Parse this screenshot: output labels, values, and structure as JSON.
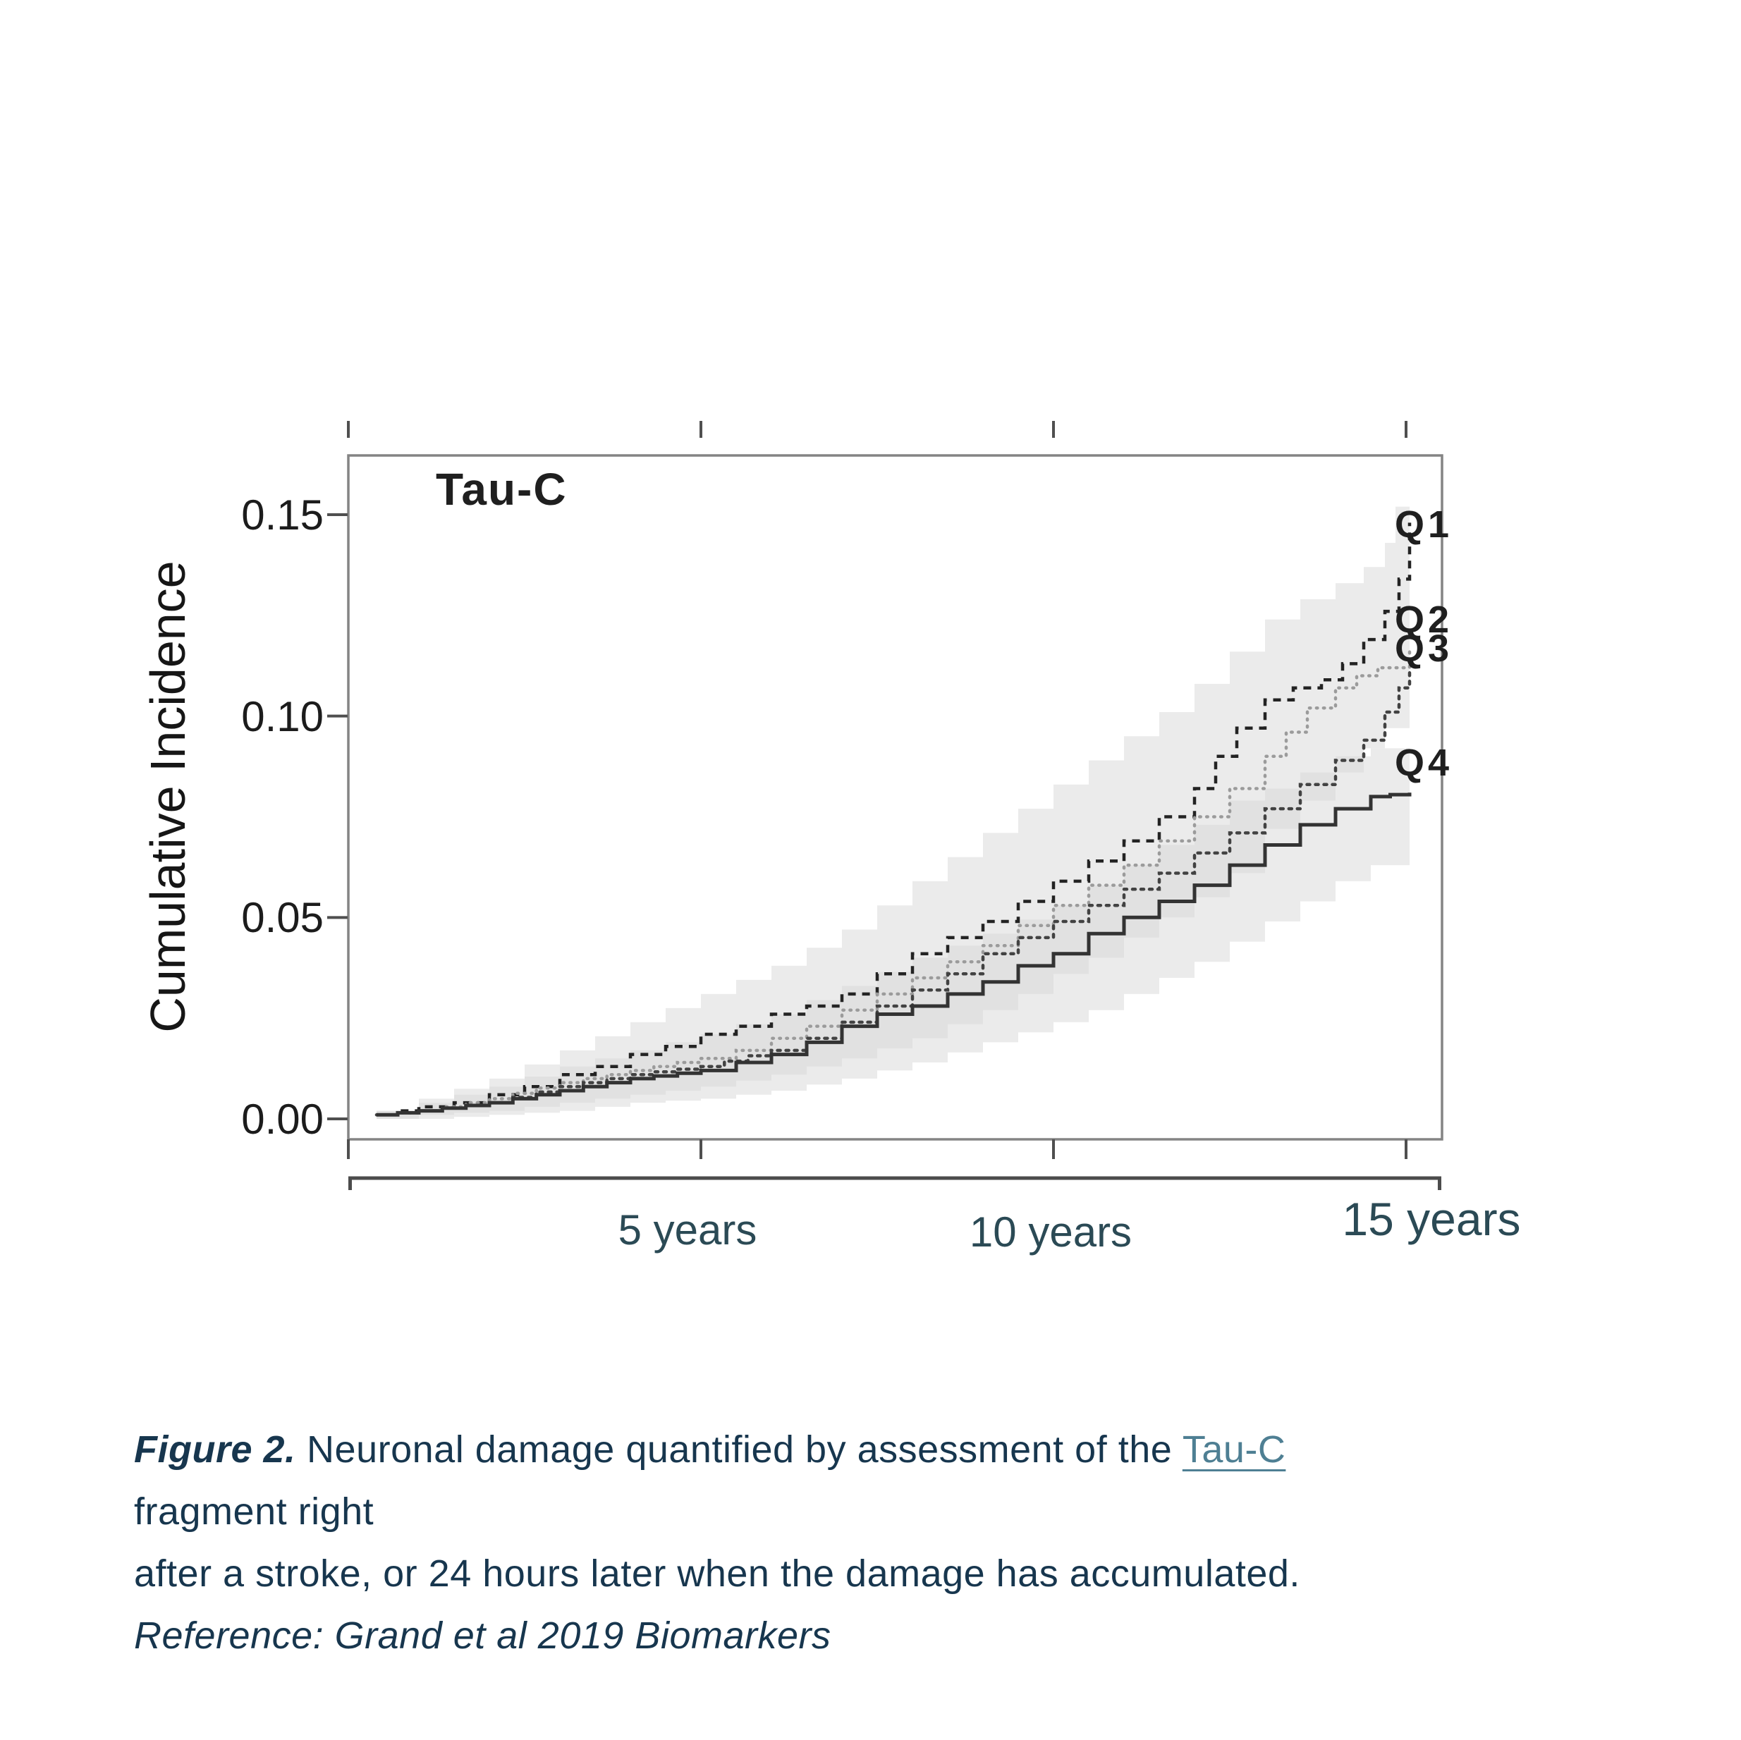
{
  "figure": {
    "plot": {
      "title": "Tau-C",
      "y_axis": {
        "label": "Cumulative Incidence",
        "ticks": [
          "0.15",
          "0.10",
          "0.05",
          "0.00"
        ]
      },
      "x_axis": {
        "tick_labels": [
          "5 years",
          "10 years",
          "15 years"
        ]
      }
    }
  },
  "caption": {
    "figure_label": "Figure 2.",
    "body_1": " Neuronal damage quantified by assessment of the ",
    "link_text": "Tau-C",
    "body_1_end": " fragment right",
    "line2": "after a stroke, or 24 hours later when the damage has accumulated.",
    "reference": "Reference: Grand et al 2019 Biomarkers"
  },
  "colors": {
    "caption_text": "#17364e",
    "x_label_teal": "#2b4a55",
    "link_teal": "#4e7f93",
    "plot_text": "#1f1f1f",
    "frame_gray": "#848484",
    "tick_gray": "#4f4f4f",
    "band_gray": "#d8d8d8"
  },
  "chart_data": {
    "type": "line",
    "style": "kaplan-meier step curves with shaded confidence bands",
    "title": "Tau-C",
    "xlabel": "years",
    "ylabel": "Cumulative Incidence",
    "xlim": [
      0,
      15.7
    ],
    "ylim": [
      -0.005,
      0.165
    ],
    "x_ticks": [
      0,
      5,
      10,
      15
    ],
    "y_ticks": [
      0.15,
      0.1,
      0.05,
      0.0
    ],
    "grid": false,
    "legend_position": "right-edge-labels",
    "series": [
      {
        "name": "Q1",
        "line_style": "dashed",
        "color": "#232323",
        "width": 4.5,
        "dash": "11 9",
        "points": [
          [
            0.4,
            0.001
          ],
          [
            1,
            0.003
          ],
          [
            1.5,
            0.004
          ],
          [
            2,
            0.006
          ],
          [
            2.5,
            0.008
          ],
          [
            3,
            0.011
          ],
          [
            3.5,
            0.013
          ],
          [
            4,
            0.016
          ],
          [
            4.5,
            0.018
          ],
          [
            5,
            0.021
          ],
          [
            5.5,
            0.023
          ],
          [
            6,
            0.026
          ],
          [
            6.5,
            0.028
          ],
          [
            7,
            0.031
          ],
          [
            7.5,
            0.036
          ],
          [
            8,
            0.041
          ],
          [
            8.5,
            0.045
          ],
          [
            9,
            0.049
          ],
          [
            9.5,
            0.054
          ],
          [
            10,
            0.059
          ],
          [
            10.5,
            0.064
          ],
          [
            11,
            0.069
          ],
          [
            11.5,
            0.075
          ],
          [
            12,
            0.082
          ],
          [
            12.3,
            0.09
          ],
          [
            12.6,
            0.097
          ],
          [
            13,
            0.104
          ],
          [
            13.4,
            0.107
          ],
          [
            13.8,
            0.109
          ],
          [
            14.1,
            0.113
          ],
          [
            14.4,
            0.119
          ],
          [
            14.7,
            0.126
          ],
          [
            14.9,
            0.134
          ],
          [
            15.05,
            0.148
          ]
        ]
      },
      {
        "name": "Q2",
        "line_style": "dotted",
        "color": "#9b9b9b",
        "width": 4.5,
        "dash": "1.5 8.5",
        "points": [
          [
            0.4,
            0.001
          ],
          [
            1,
            0.002
          ],
          [
            2,
            0.005
          ],
          [
            3,
            0.009
          ],
          [
            4,
            0.012
          ],
          [
            5,
            0.015
          ],
          [
            5.5,
            0.017
          ],
          [
            6,
            0.02
          ],
          [
            6.5,
            0.023
          ],
          [
            7,
            0.027
          ],
          [
            7.5,
            0.031
          ],
          [
            8,
            0.035
          ],
          [
            8.5,
            0.039
          ],
          [
            9,
            0.043
          ],
          [
            9.5,
            0.048
          ],
          [
            10,
            0.053
          ],
          [
            10.5,
            0.058
          ],
          [
            11,
            0.063
          ],
          [
            11.5,
            0.069
          ],
          [
            12,
            0.075
          ],
          [
            12.5,
            0.082
          ],
          [
            13,
            0.09
          ],
          [
            13.3,
            0.096
          ],
          [
            13.6,
            0.102
          ],
          [
            14,
            0.107
          ],
          [
            14.3,
            0.11
          ],
          [
            14.6,
            0.112
          ],
          [
            15.05,
            0.116
          ]
        ]
      },
      {
        "name": "Q3",
        "line_style": "dash-dot",
        "color": "#424242",
        "width": 4.5,
        "dash": "4 8",
        "points": [
          [
            0.4,
            0.001
          ],
          [
            1,
            0.002
          ],
          [
            2,
            0.004
          ],
          [
            3,
            0.008
          ],
          [
            4,
            0.011
          ],
          [
            5,
            0.013
          ],
          [
            6,
            0.017
          ],
          [
            6.5,
            0.02
          ],
          [
            7,
            0.024
          ],
          [
            7.5,
            0.028
          ],
          [
            8,
            0.032
          ],
          [
            8.5,
            0.036
          ],
          [
            9,
            0.041
          ],
          [
            9.5,
            0.045
          ],
          [
            10,
            0.049
          ],
          [
            10.5,
            0.053
          ],
          [
            11,
            0.057
          ],
          [
            11.5,
            0.061
          ],
          [
            12,
            0.066
          ],
          [
            12.5,
            0.071
          ],
          [
            13,
            0.077
          ],
          [
            13.5,
            0.083
          ],
          [
            14,
            0.089
          ],
          [
            14.4,
            0.094
          ],
          [
            14.7,
            0.101
          ],
          [
            14.9,
            0.107
          ],
          [
            15.05,
            0.112
          ]
        ]
      },
      {
        "name": "Q4",
        "line_style": "solid",
        "color": "#333333",
        "width": 5,
        "dash": "",
        "points": [
          [
            0.4,
            0.001
          ],
          [
            1,
            0.002
          ],
          [
            2,
            0.004
          ],
          [
            3,
            0.007
          ],
          [
            4,
            0.01
          ],
          [
            5,
            0.012
          ],
          [
            5.5,
            0.014
          ],
          [
            6,
            0.016
          ],
          [
            6.5,
            0.019
          ],
          [
            7,
            0.023
          ],
          [
            7.5,
            0.026
          ],
          [
            8,
            0.028
          ],
          [
            8.5,
            0.031
          ],
          [
            9,
            0.034
          ],
          [
            9.5,
            0.038
          ],
          [
            10,
            0.041
          ],
          [
            10.5,
            0.046
          ],
          [
            11,
            0.05
          ],
          [
            11.5,
            0.054
          ],
          [
            12,
            0.058
          ],
          [
            12.5,
            0.063
          ],
          [
            13,
            0.068
          ],
          [
            13.5,
            0.073
          ],
          [
            14,
            0.077
          ],
          [
            14.5,
            0.08
          ],
          [
            15.05,
            0.081
          ]
        ]
      }
    ],
    "confidence_bands": [
      {
        "name": "Q1-Q3 cluster CI",
        "upper": [
          [
            0.4,
            0.002
          ],
          [
            1,
            0.005
          ],
          [
            2,
            0.01
          ],
          [
            3,
            0.017
          ],
          [
            4,
            0.024
          ],
          [
            5,
            0.031
          ],
          [
            6,
            0.038
          ],
          [
            7,
            0.047
          ],
          [
            7.5,
            0.053
          ],
          [
            8,
            0.059
          ],
          [
            8.5,
            0.065
          ],
          [
            9,
            0.071
          ],
          [
            9.5,
            0.077
          ],
          [
            10,
            0.083
          ],
          [
            10.5,
            0.089
          ],
          [
            11,
            0.095
          ],
          [
            11.5,
            0.101
          ],
          [
            12,
            0.108
          ],
          [
            12.5,
            0.116
          ],
          [
            13,
            0.124
          ],
          [
            13.5,
            0.129
          ],
          [
            14,
            0.133
          ],
          [
            14.4,
            0.137
          ],
          [
            14.7,
            0.143
          ],
          [
            14.85,
            0.152
          ],
          [
            15.05,
            0.168
          ]
        ],
        "lower": [
          [
            0.4,
            0.0
          ],
          [
            1,
            0.001
          ],
          [
            2,
            0.002
          ],
          [
            3,
            0.004
          ],
          [
            4,
            0.006
          ],
          [
            5,
            0.008
          ],
          [
            6,
            0.011
          ],
          [
            7,
            0.015
          ],
          [
            8,
            0.02
          ],
          [
            9,
            0.027
          ],
          [
            9.5,
            0.031
          ],
          [
            10,
            0.036
          ],
          [
            10.5,
            0.04
          ],
          [
            11,
            0.045
          ],
          [
            11.5,
            0.05
          ],
          [
            12,
            0.055
          ],
          [
            12.5,
            0.061
          ],
          [
            13,
            0.072
          ],
          [
            13.5,
            0.079
          ],
          [
            14,
            0.086
          ],
          [
            14.4,
            0.092
          ],
          [
            14.7,
            0.097
          ],
          [
            15.05,
            0.102
          ]
        ]
      },
      {
        "name": "Q4 CI",
        "upper": [
          [
            0.4,
            0.002
          ],
          [
            1,
            0.004
          ],
          [
            2,
            0.008
          ],
          [
            3,
            0.013
          ],
          [
            4,
            0.017
          ],
          [
            5,
            0.021
          ],
          [
            6,
            0.026
          ],
          [
            7,
            0.033
          ],
          [
            8,
            0.04
          ],
          [
            9,
            0.046
          ],
          [
            10,
            0.053
          ],
          [
            10.5,
            0.058
          ],
          [
            11,
            0.063
          ],
          [
            11.5,
            0.068
          ],
          [
            12,
            0.073
          ],
          [
            12.5,
            0.079
          ],
          [
            13,
            0.082
          ],
          [
            13.5,
            0.086
          ],
          [
            14,
            0.09
          ],
          [
            14.5,
            0.092
          ],
          [
            15.05,
            0.093
          ]
        ],
        "lower": [
          [
            0.4,
            0.0
          ],
          [
            1,
            0.0
          ],
          [
            2,
            0.001
          ],
          [
            3,
            0.002
          ],
          [
            4,
            0.004
          ],
          [
            5,
            0.005
          ],
          [
            6,
            0.007
          ],
          [
            7,
            0.01
          ],
          [
            8,
            0.014
          ],
          [
            9,
            0.019
          ],
          [
            10,
            0.024
          ],
          [
            10.5,
            0.027
          ],
          [
            11,
            0.031
          ],
          [
            11.5,
            0.035
          ],
          [
            12,
            0.039
          ],
          [
            12.5,
            0.044
          ],
          [
            13,
            0.049
          ],
          [
            13.5,
            0.054
          ],
          [
            14,
            0.059
          ],
          [
            14.5,
            0.063
          ],
          [
            15.05,
            0.065
          ]
        ]
      }
    ]
  }
}
